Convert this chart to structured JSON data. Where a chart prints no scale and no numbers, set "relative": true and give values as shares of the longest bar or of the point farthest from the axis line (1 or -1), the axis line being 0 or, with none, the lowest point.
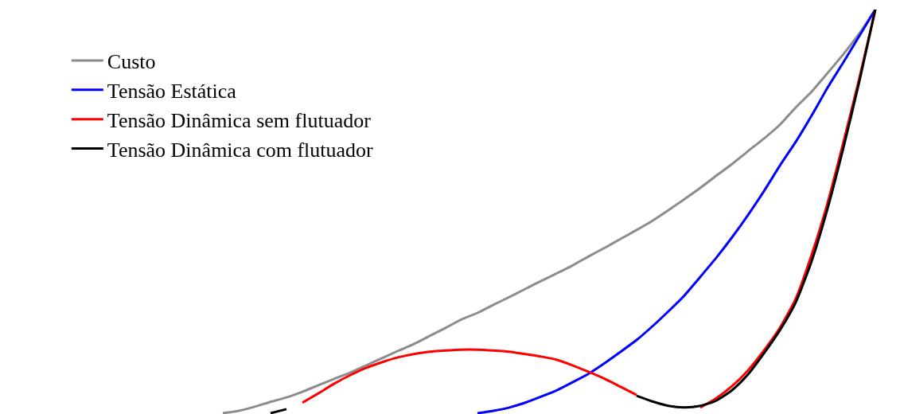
{
  "chart_data": {
    "type": "line",
    "relative": true,
    "legend": "top left",
    "marker": "none",
    "line_style": "solid",
    "categories": [
      null,
      null,
      null,
      null,
      null,
      null,
      null,
      null,
      null,
      null,
      null,
      null,
      null,
      null,
      null,
      null,
      null,
      null,
      null,
      null,
      null,
      null,
      null,
      null,
      null,
      null,
      null,
      null,
      null,
      null,
      null,
      null,
      null,
      null,
      null,
      null,
      null,
      null,
      null,
      null,
      null,
      null,
      null
    ],
    "series": [
      {
        "name": "Custo",
        "color": "#8c8c8c",
        "values": [
          null,
          0.002,
          0.008,
          0.018,
          0.03,
          0.041,
          0.055,
          0.071,
          0.087,
          0.102,
          0.12,
          0.138,
          0.156,
          0.173,
          0.193,
          0.213,
          0.234,
          0.25,
          0.27,
          0.289,
          0.309,
          0.329,
          0.348,
          0.368,
          0.39,
          0.411,
          0.433,
          0.455,
          0.478,
          0.504,
          0.531,
          0.559,
          0.589,
          0.618,
          0.65,
          0.681,
          0.715,
          0.758,
          0.797,
          0.843,
          0.89,
          0.941,
          1
        ]
      },
      {
        "name": "Tensão Estática",
        "color": "#0000ff",
        "values": [
          null,
          null,
          null,
          null,
          null,
          null,
          null,
          null,
          null,
          null,
          null,
          null,
          null,
          null,
          null,
          null,
          null,
          0.002,
          0.008,
          0.016,
          0.028,
          0.043,
          0.059,
          0.079,
          0.1,
          0.126,
          0.154,
          0.183,
          0.217,
          0.254,
          0.293,
          0.339,
          0.386,
          0.437,
          0.492,
          0.551,
          0.614,
          0.673,
          0.738,
          0.807,
          0.87,
          0.935,
          1
        ]
      },
      {
        "name": "Tensão Dinâmica sem flutuador",
        "color": "#ff0000",
        "values": [
          null,
          null,
          null,
          null,
          null,
          null,
          0.028,
          0.051,
          0.075,
          0.096,
          0.114,
          0.128,
          0.14,
          0.148,
          0.154,
          0.157,
          0.159,
          0.159,
          0.157,
          0.154,
          0.148,
          0.142,
          0.134,
          0.12,
          0.104,
          0.087,
          0.067,
          0.047,
          null,
          null,
          null,
          0.016,
          0.039,
          0.069,
          0.108,
          0.157,
          0.213,
          0.285,
          0.394,
          0.522,
          0.673,
          0.831,
          1
        ]
      },
      {
        "name": "Tensão Dinâmica com flutuador",
        "color": "#000000",
        "values": [
          null,
          null,
          null,
          null,
          0.002,
          0.012,
          null,
          null,
          null,
          null,
          null,
          null,
          null,
          null,
          null,
          null,
          null,
          null,
          null,
          null,
          null,
          null,
          null,
          null,
          null,
          null,
          null,
          0.045,
          0.031,
          0.02,
          0.016,
          0.02,
          0.033,
          0.059,
          0.098,
          0.15,
          0.207,
          0.276,
          0.378,
          0.508,
          0.659,
          0.823,
          1
        ]
      }
    ]
  }
}
